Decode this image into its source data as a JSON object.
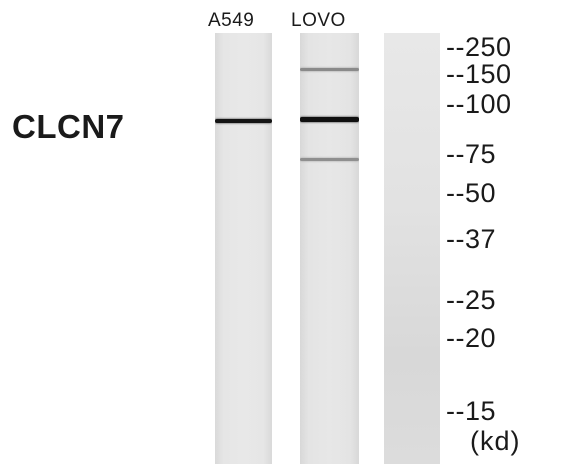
{
  "lanes": [
    {
      "label": "A549"
    },
    {
      "label": "LOVO"
    },
    {
      "label": ""
    }
  ],
  "protein_label": "CLCN7",
  "markers": [
    {
      "label": "--250",
      "kd": 250
    },
    {
      "label": "--150",
      "kd": 150
    },
    {
      "label": "--100",
      "kd": 100
    },
    {
      "label": "--75",
      "kd": 75
    },
    {
      "label": "--50",
      "kd": 50
    },
    {
      "label": "--37",
      "kd": 37
    },
    {
      "label": "--25",
      "kd": 25
    },
    {
      "label": "--20",
      "kd": 20
    },
    {
      "label": "--15",
      "kd": 15
    }
  ],
  "unit_label": "(kd)",
  "bands": [
    {
      "lane": "A549",
      "approx_kd": 92,
      "intensity": "strong"
    },
    {
      "lane": "LOVO",
      "approx_kd": 150,
      "intensity": "faint"
    },
    {
      "lane": "LOVO",
      "approx_kd": 92,
      "intensity": "strong"
    },
    {
      "lane": "LOVO",
      "approx_kd": 75,
      "intensity": "faint"
    }
  ],
  "colors": {
    "lane_background": "#e4e4e4",
    "control_lane_background": "#dedede",
    "strong_band": "#141414",
    "faint_band": "#8a8a8a",
    "text": "#1a1a1a"
  }
}
